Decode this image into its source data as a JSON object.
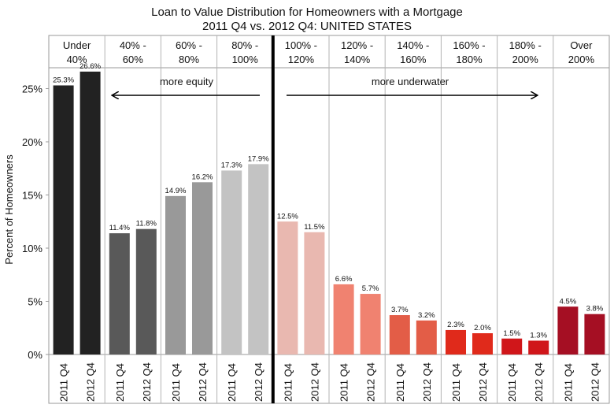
{
  "chart_data": {
    "type": "bar",
    "title_line1": "Loan to Value Distribution for Homeowners with a Mortgage",
    "title_line2": "2011 Q4 vs. 2012 Q4:  UNITED STATES",
    "ylabel": "Percent of Homeowners",
    "ylim": [
      0,
      30
    ],
    "yticks": [
      0,
      5,
      10,
      15,
      20,
      25
    ],
    "ytick_labels": [
      "0%",
      "5%",
      "10%",
      "15%",
      "20%",
      "25%"
    ],
    "series_labels": [
      "2011 Q4",
      "2012 Q4"
    ],
    "groups": [
      {
        "label_line1": "Under",
        "label_line2": "40%",
        "values": [
          25.3,
          26.6
        ],
        "value_labels": [
          "25.3%",
          "26.6%"
        ],
        "colors": [
          "#222222",
          "#222222"
        ]
      },
      {
        "label_line1": "40% -",
        "label_line2": "60%",
        "values": [
          11.4,
          11.8
        ],
        "value_labels": [
          "11.4%",
          "11.8%"
        ],
        "colors": [
          "#595959",
          "#595959"
        ]
      },
      {
        "label_line1": "60% -",
        "label_line2": "80%",
        "values": [
          14.9,
          16.2
        ],
        "value_labels": [
          "14.9%",
          "16.2%"
        ],
        "colors": [
          "#999999",
          "#999999"
        ]
      },
      {
        "label_line1": "80% -",
        "label_line2": "100%",
        "values": [
          17.3,
          17.9
        ],
        "value_labels": [
          "17.3%",
          "17.9%"
        ],
        "colors": [
          "#c3c3c3",
          "#c3c3c3"
        ]
      },
      {
        "label_line1": "100% -",
        "label_line2": "120%",
        "values": [
          12.5,
          11.5
        ],
        "value_labels": [
          "12.5%",
          "11.5%"
        ],
        "colors": [
          "#e9b8b0",
          "#e9b8b0"
        ]
      },
      {
        "label_line1": "120% -",
        "label_line2": "140%",
        "values": [
          6.6,
          5.7
        ],
        "value_labels": [
          "6.6%",
          "5.7%"
        ],
        "colors": [
          "#f08270",
          "#f08270"
        ]
      },
      {
        "label_line1": "140% -",
        "label_line2": "160%",
        "values": [
          3.7,
          3.2
        ],
        "value_labels": [
          "3.7%",
          "3.2%"
        ],
        "colors": [
          "#e35d47",
          "#e35d47"
        ]
      },
      {
        "label_line1": "160% -",
        "label_line2": "180%",
        "values": [
          2.3,
          2.0
        ],
        "value_labels": [
          "2.3%",
          "2.0%"
        ],
        "colors": [
          "#e02a1b",
          "#e02a1b"
        ]
      },
      {
        "label_line1": "180% -",
        "label_line2": "200%",
        "values": [
          1.5,
          1.3
        ],
        "value_labels": [
          "1.5%",
          "1.3%"
        ],
        "colors": [
          "#d0161a",
          "#d0161a"
        ]
      },
      {
        "label_line1": "Over",
        "label_line2": "200%",
        "values": [
          4.5,
          3.8
        ],
        "value_labels": [
          "4.5%",
          "3.8%"
        ],
        "colors": [
          "#a50f23",
          "#a50f23"
        ]
      }
    ],
    "annotations": {
      "more_equity": "more equity",
      "more_underwater": "more underwater"
    }
  }
}
